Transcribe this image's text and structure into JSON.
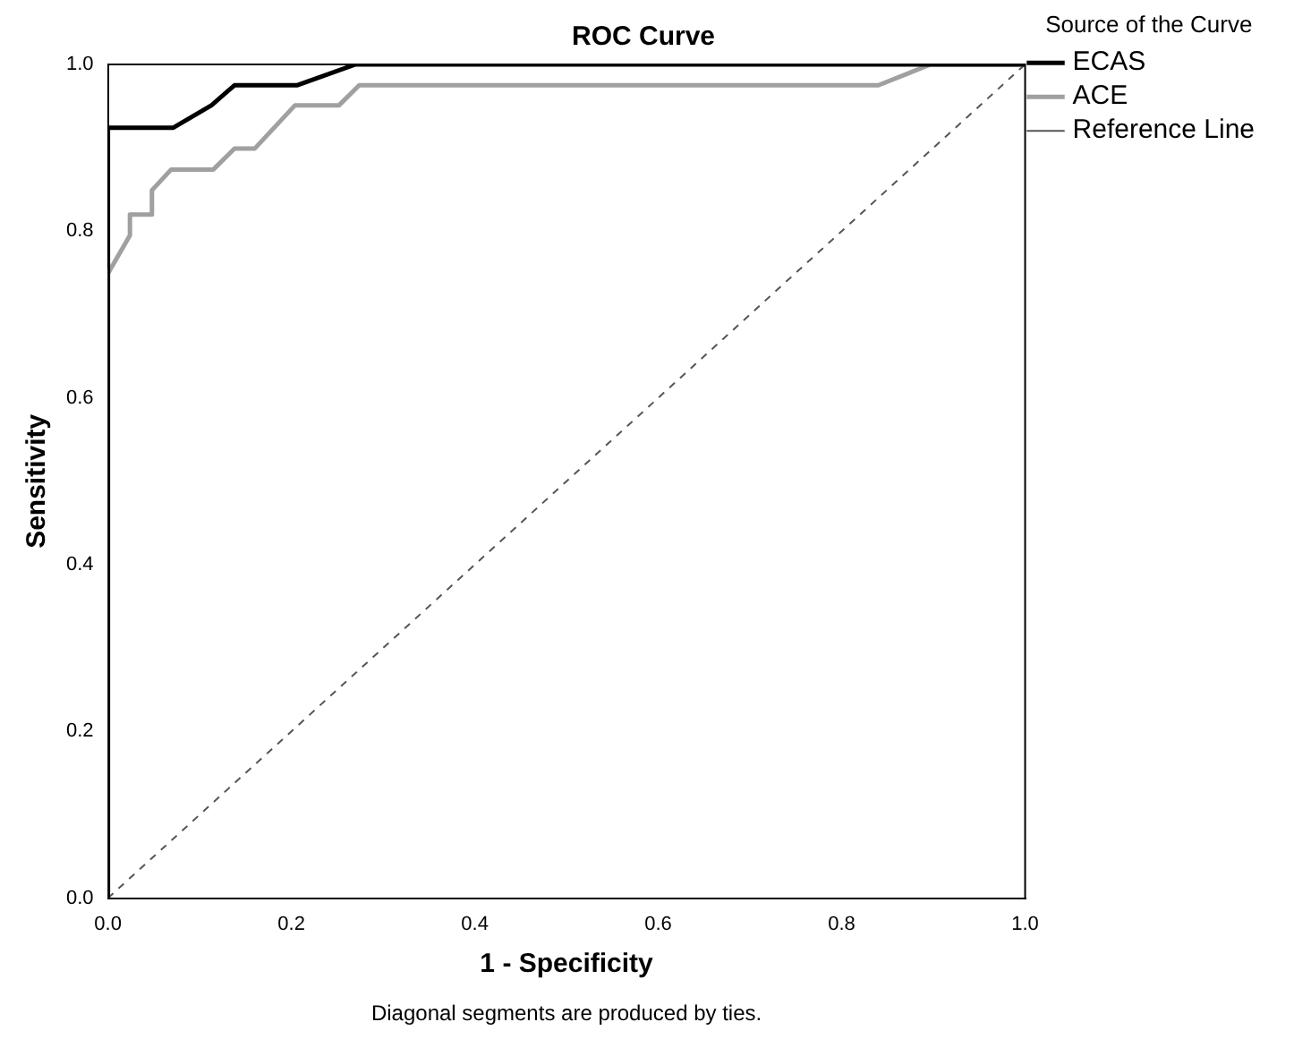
{
  "chart_data": {
    "type": "line",
    "title": "ROC Curve",
    "xlabel": "1 - Specificity",
    "ylabel": "Sensitivity",
    "legend_title": "Source of the Curve",
    "legend": "right",
    "grid": false,
    "marker": "none",
    "xlim": [
      0,
      1
    ],
    "ylim": [
      0,
      1
    ],
    "xticks": [
      {
        "value": 0,
        "label": "0.0"
      },
      0.2,
      0.4,
      0.6,
      0.8,
      {
        "value": 1,
        "label": "1.0"
      }
    ],
    "yticks": [
      {
        "value": 0,
        "label": "0.0"
      },
      0.2,
      0.4,
      0.6,
      0.8,
      {
        "value": 1,
        "label": "1.0"
      }
    ],
    "series": [
      {
        "name": "ECAS",
        "color": "#000000",
        "line_style": "solid",
        "x": [
          0,
          0,
          0.071,
          0.113,
          0.138,
          0.206,
          0.27,
          1
        ],
        "values": [
          0,
          0.924,
          0.924,
          0.951,
          0.975,
          0.975,
          1,
          1
        ]
      },
      {
        "name": "ACE",
        "color": "#a0a0a0",
        "line_style": "solid",
        "x": [
          0,
          0,
          0.024,
          0.024,
          0.048,
          0.048,
          0.069,
          0.115,
          0.138,
          0.16,
          0.204,
          0.252,
          0.274,
          0.84,
          0.897,
          1
        ],
        "values": [
          0,
          0.749,
          0.795,
          0.82,
          0.82,
          0.849,
          0.874,
          0.874,
          0.899,
          0.899,
          0.951,
          0.951,
          0.975,
          0.975,
          1,
          1
        ]
      },
      {
        "name": "Reference Line",
        "color": "#555555",
        "line_style": "dashed",
        "x": [
          0,
          1
        ],
        "values": [
          0,
          1
        ]
      }
    ],
    "annotations": [
      "Diagonal segments are produced by ties."
    ]
  }
}
